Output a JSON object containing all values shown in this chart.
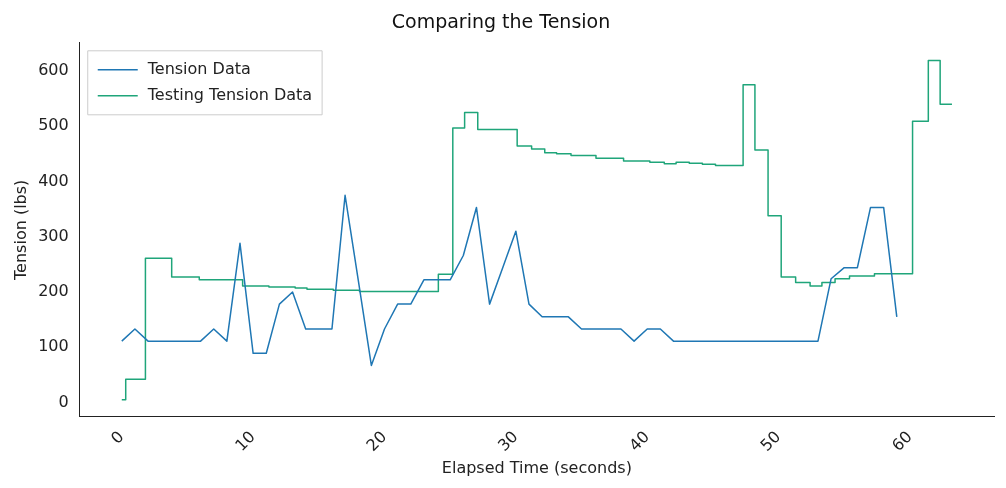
{
  "chart_data": {
    "type": "line",
    "title": "Comparing the Tension",
    "xlabel": "Elapsed Time (seconds)",
    "ylabel": "Tension (lbs)",
    "xlim": [
      -3.2,
      66.4
    ],
    "xticks": [
      0,
      10,
      20,
      30,
      40,
      50,
      60
    ],
    "ylim": [
      -26,
      651
    ],
    "yticks": [
      0,
      100,
      200,
      300,
      400,
      500,
      600
    ],
    "grid": false,
    "legend": "top left",
    "marker": "none",
    "line_style": "solid",
    "series": [
      {
        "name": "Tension Data",
        "color": "#1f77b4",
        "x": [
          0,
          1,
          2,
          3,
          4,
          5,
          6,
          7,
          8,
          9,
          10,
          11,
          12,
          13,
          14,
          15,
          16,
          17,
          18,
          19,
          20,
          21,
          22,
          23,
          24,
          25,
          26,
          27,
          28,
          29,
          30,
          31,
          32,
          33,
          34,
          35,
          36,
          37,
          38,
          39,
          40,
          41,
          42,
          43,
          44,
          45,
          46,
          47,
          48,
          49,
          50,
          51,
          52,
          53,
          54,
          55,
          56,
          57,
          58,
          59
        ],
        "values": [
          111,
          133,
          111,
          111,
          111,
          111,
          111,
          133,
          111,
          288,
          89,
          89,
          178,
          200,
          133,
          133,
          133,
          375,
          222,
          67,
          133,
          178,
          178,
          222,
          222,
          222,
          266,
          353,
          178,
          244,
          310,
          178,
          155,
          155,
          155,
          133,
          133,
          133,
          133,
          111,
          133,
          133,
          111,
          111,
          111,
          111,
          111,
          111,
          111,
          111,
          111,
          111,
          111,
          111,
          224,
          244,
          244,
          353,
          353,
          155
        ]
      },
      {
        "name": "Testing Tension Data",
        "color": "#1fa57a",
        "type": "step",
        "x": [
          0,
          0.3,
          1.8,
          3.8,
          5.9,
          9.2,
          11.2,
          13.2,
          14.1,
          16.1,
          18.1,
          24.1,
          25.2,
          26.1,
          27.1,
          30.1,
          31.2,
          32.2,
          33.1,
          34.2,
          36.1,
          38.2,
          40.2,
          41.3,
          42.2,
          43.2,
          44.2,
          45.2,
          47.3,
          48.2,
          49.2,
          50.2,
          51.3,
          52.4,
          53.3,
          54.3,
          55.4,
          57.3,
          60.2,
          61.4,
          62.3,
          63.2
        ],
        "values": [
          5,
          42,
          261,
          227,
          222,
          211,
          209,
          207,
          205,
          203,
          201,
          232,
          497,
          525,
          494,
          464,
          459,
          452,
          450,
          447,
          442,
          437,
          435,
          432,
          435,
          433,
          431,
          429,
          575,
          457,
          338,
          227,
          217,
          211,
          217,
          224,
          229,
          233,
          509,
          619,
          540,
          540
        ]
      }
    ]
  }
}
